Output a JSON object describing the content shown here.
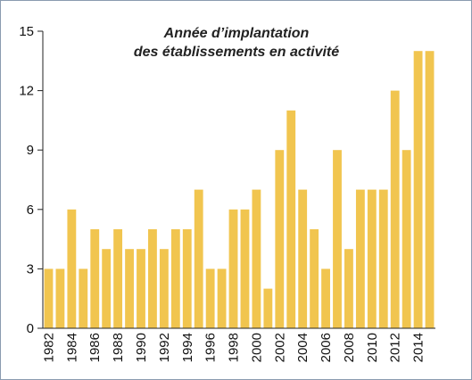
{
  "chart_data": {
    "type": "bar",
    "title": [
      "Année d’implantation",
      "des établissements en activité"
    ],
    "categories": [
      "1982",
      null,
      "1984",
      null,
      "1986",
      null,
      "1988",
      null,
      "1990",
      null,
      "1992",
      null,
      "1994",
      null,
      "1996",
      null,
      "1998",
      null,
      "2000",
      null,
      "2002",
      null,
      "2004",
      null,
      "2006",
      null,
      "2008",
      null,
      "2010",
      null,
      "2012",
      null,
      "2014",
      null
    ],
    "values": [
      3,
      3,
      6,
      3,
      5,
      4,
      5,
      4,
      4,
      5,
      4,
      5,
      5,
      7,
      3,
      3,
      6,
      6,
      7,
      2,
      9,
      11,
      7,
      5,
      3,
      9,
      4,
      7,
      7,
      7,
      12,
      9,
      14,
      14
    ],
    "color": "#f1c54f",
    "ylim": [
      0,
      15
    ],
    "yticks": [
      0,
      3,
      6,
      9,
      12,
      15
    ],
    "grid": false
  }
}
